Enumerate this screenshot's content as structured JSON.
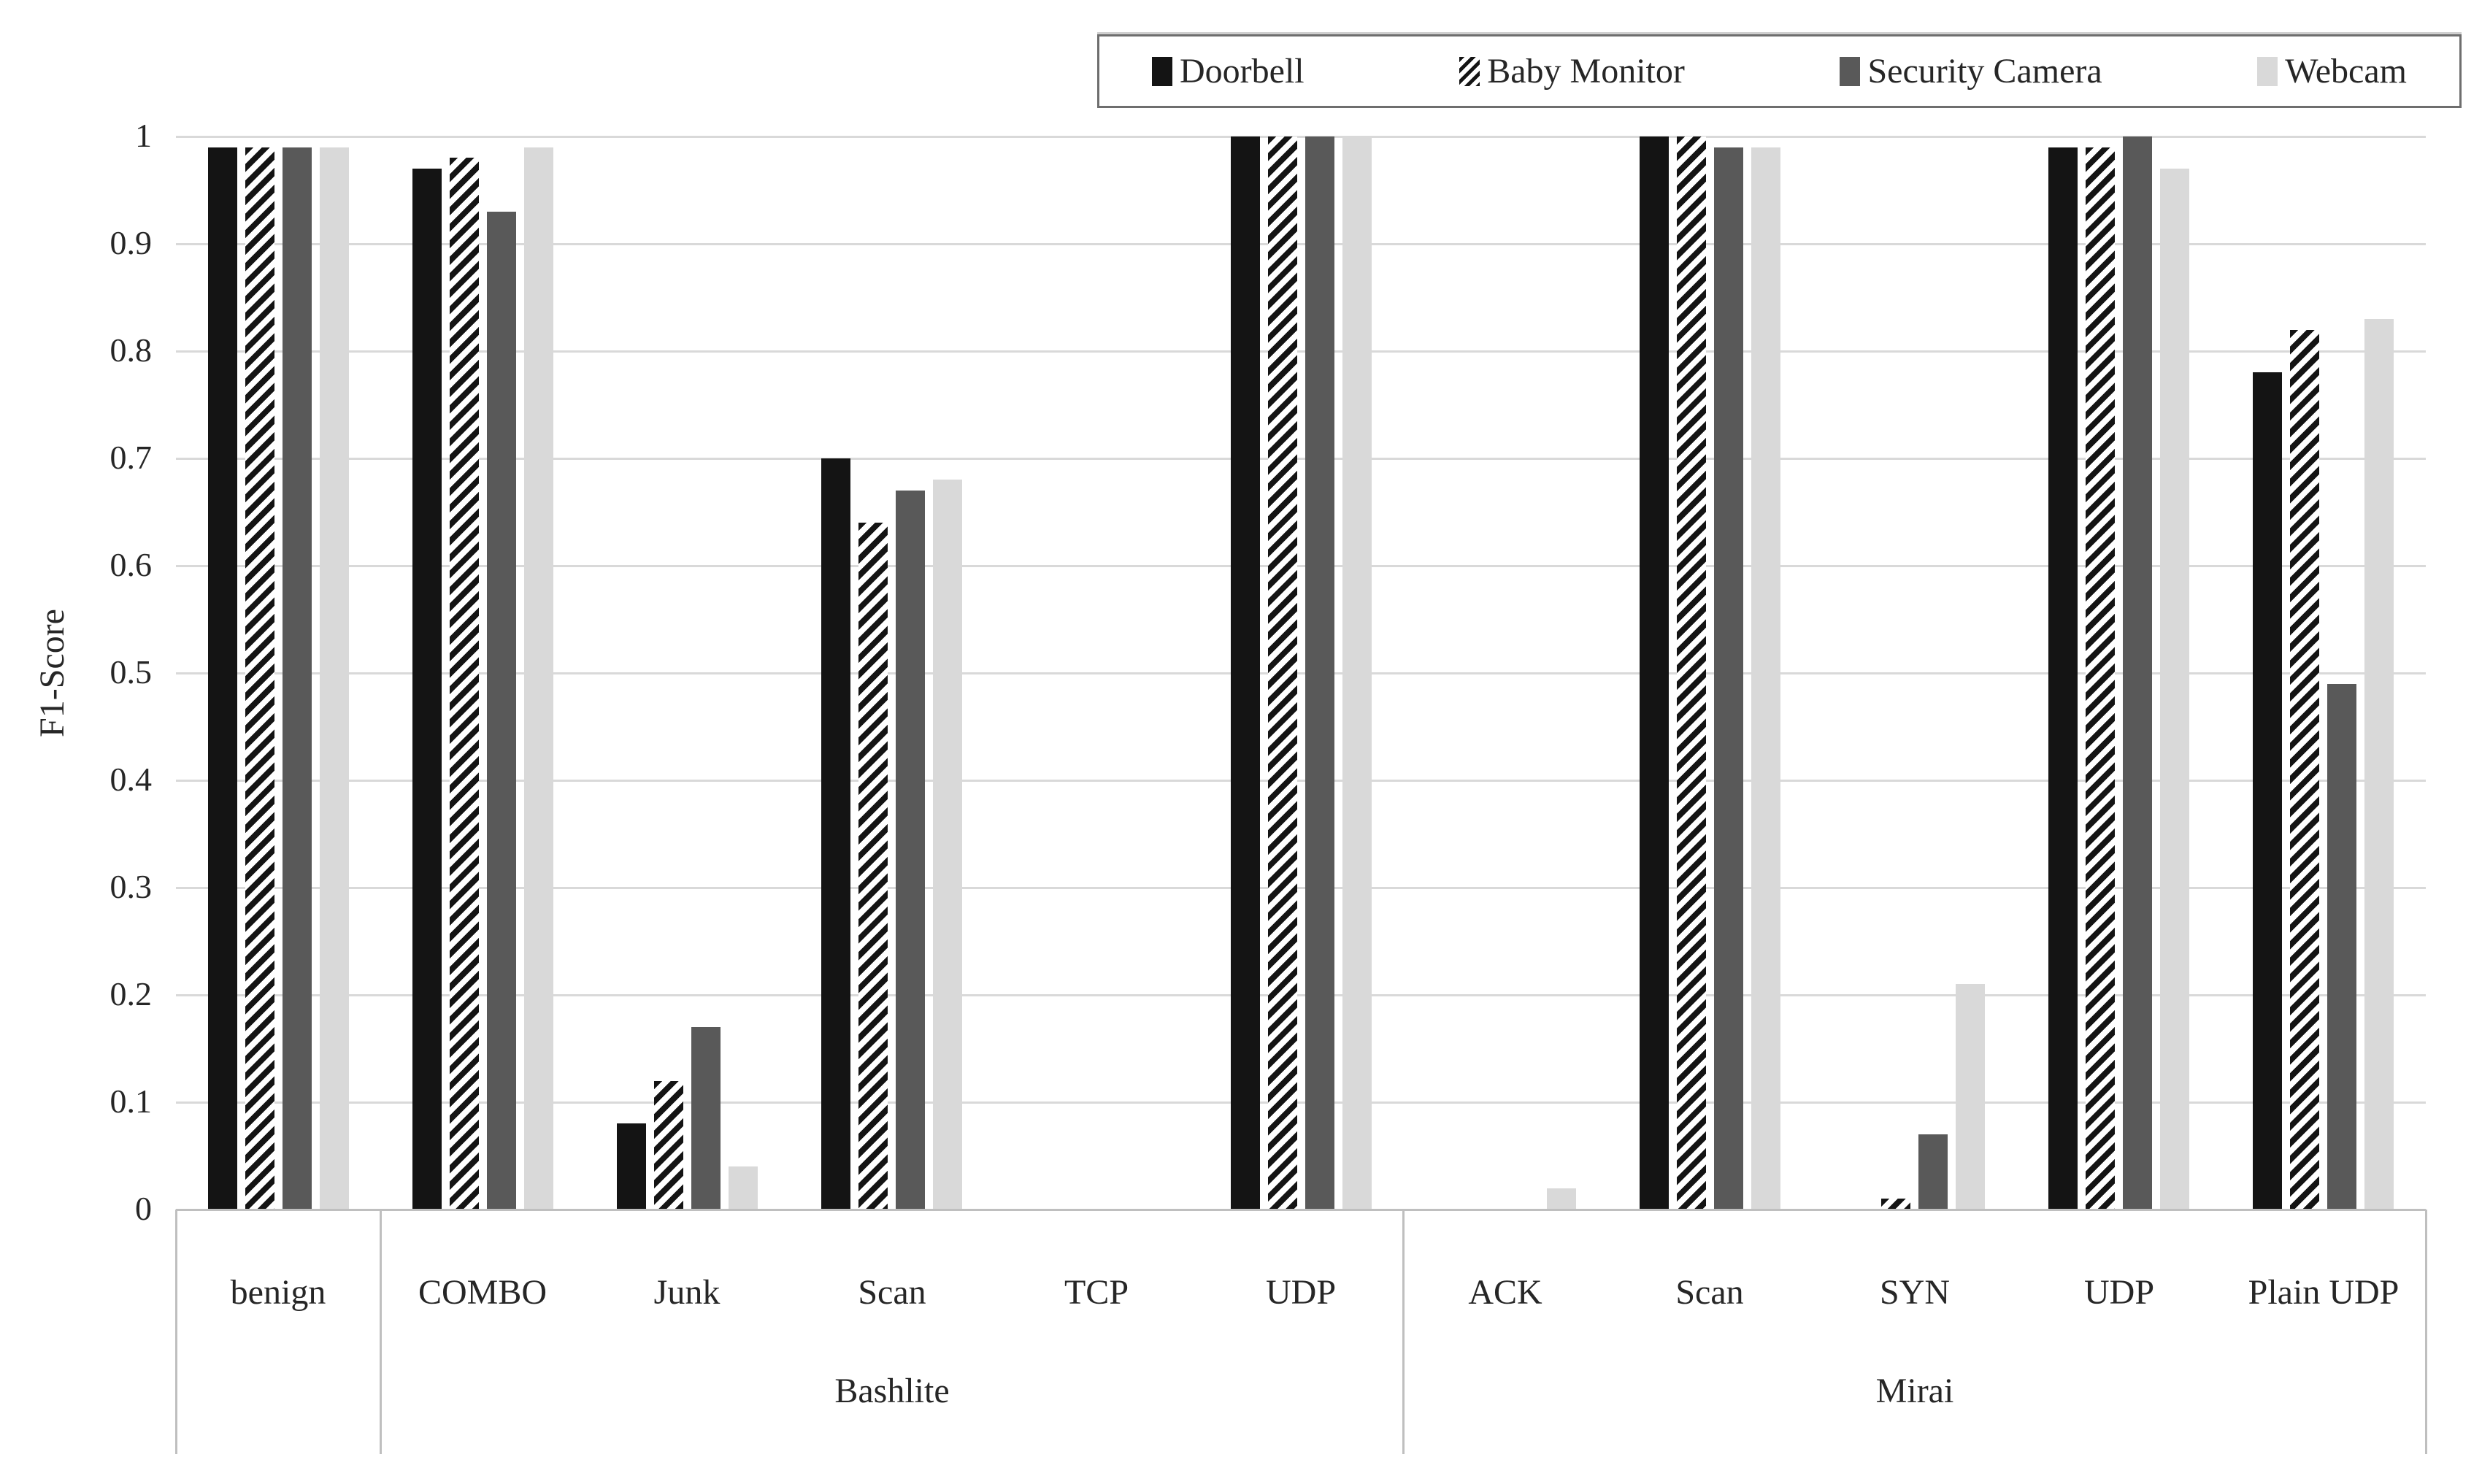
{
  "chart_data": {
    "type": "bar",
    "title": "",
    "xlabel": "",
    "ylabel": "F1-Score",
    "ylim": [
      0,
      1
    ],
    "ytick_labels": [
      "0",
      "0.1",
      "0.2",
      "0.3",
      "0.4",
      "0.5",
      "0.6",
      "0.7",
      "0.8",
      "0.9",
      "1"
    ],
    "grid": "horizontal",
    "legend_position": "top-right",
    "categories": [
      "benign",
      "COMBO",
      "Junk",
      "Scan",
      "TCP",
      "UDP",
      "ACK",
      "Scan",
      "SYN",
      "UDP",
      "Plain UDP"
    ],
    "category_groups": [
      {
        "label": "Bashlite",
        "start_index": 1,
        "end_index": 5
      },
      {
        "label": "Mirai",
        "start_index": 6,
        "end_index": 10
      }
    ],
    "separator_boundaries": [
      0,
      1,
      6,
      11
    ],
    "series": [
      {
        "name": "Doorbell",
        "style": "solid",
        "color": "#141414",
        "values": [
          0.99,
          0.97,
          0.08,
          0.7,
          0,
          1.0,
          0,
          1.0,
          0,
          0.99,
          0.78
        ]
      },
      {
        "name": "Baby Monitor",
        "style": "hatch",
        "color": "#141414",
        "values": [
          0.99,
          0.98,
          0.12,
          0.64,
          0,
          1.0,
          0,
          1.0,
          0.01,
          0.99,
          0.82
        ]
      },
      {
        "name": "Security Camera",
        "style": "solid",
        "color": "#595959",
        "values": [
          0.99,
          0.93,
          0.17,
          0.67,
          0,
          1.0,
          0,
          0.99,
          0.07,
          1.0,
          0.49
        ]
      },
      {
        "name": "Webcam",
        "style": "solid",
        "color": "#d9d9d9",
        "values": [
          0.99,
          0.99,
          0.04,
          0.68,
          0,
          1.0,
          0.02,
          0.99,
          0.21,
          0.97,
          0.83
        ]
      }
    ],
    "colors": {
      "gridline": "#d9d9d9",
      "axis_line": "#bfbfbf",
      "text": "#262626",
      "hatch_foreground": "#141414",
      "hatch_background": "#ffffff"
    }
  }
}
